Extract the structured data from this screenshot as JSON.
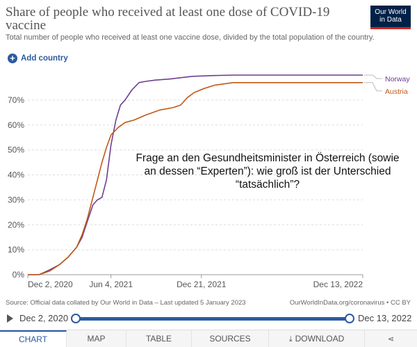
{
  "header": {
    "title": "Share of people who received at least one dose of COVID-19 vaccine",
    "subtitle": "Total number of people who received at least one vaccine dose, divided by the total population of the country.",
    "logo_line1": "Our World",
    "logo_line2": "in Data"
  },
  "controls": {
    "add_country": "Add country"
  },
  "annotation": "Frage an den Gesundheitsminister in Österreich (sowie an dessen “Experten”): wie groß ist der Unterschied “tatsächlich”?",
  "footer": {
    "source": "Source: Official data collated by Our World in Data – Last updated 5 January 2023",
    "url": "OurWorldInData.org/coronavirus • CC BY"
  },
  "timeline": {
    "start": "Dec 2, 2020",
    "end": "Dec 13, 2022"
  },
  "tabs": {
    "chart": "CHART",
    "map": "MAP",
    "table": "TABLE",
    "sources": "SOURCES",
    "download": "DOWNLOAD"
  },
  "colors": {
    "norway": "#6d3e91",
    "austria": "#c05917",
    "accent": "#2c5aa0"
  },
  "chart_data": {
    "type": "line",
    "x_ticks": [
      "Dec 2, 2020",
      "Jun 4, 2021",
      "Dec 21, 2021",
      "Dec 13, 2022"
    ],
    "y_ticks": [
      "0%",
      "10%",
      "20%",
      "30%",
      "40%",
      "50%",
      "60%",
      "70%"
    ],
    "ylim": [
      0,
      80
    ],
    "xlim": [
      "2020-12-02",
      "2022-12-13"
    ],
    "grid": true,
    "legend": "right",
    "series": [
      {
        "name": "Norway",
        "x": [
          "2020-12-02",
          "2020-12-27",
          "2021-01-20",
          "2021-02-10",
          "2021-03-01",
          "2021-03-20",
          "2021-04-01",
          "2021-04-12",
          "2021-04-25",
          "2021-05-05",
          "2021-05-15",
          "2021-05-25",
          "2021-06-04",
          "2021-06-15",
          "2021-06-25",
          "2021-07-05",
          "2021-07-20",
          "2021-08-05",
          "2021-08-20",
          "2021-09-10",
          "2021-10-15",
          "2021-12-01",
          "2022-01-15",
          "2022-03-01",
          "2022-06-01",
          "2022-09-01",
          "2022-12-13"
        ],
        "values": [
          0,
          0,
          2,
          4,
          7,
          11,
          15,
          21,
          28,
          30,
          31,
          38,
          52,
          62,
          68,
          70,
          74,
          77,
          77.5,
          78,
          78.5,
          79.5,
          79.8,
          80,
          80,
          80,
          80
        ]
      },
      {
        "name": "Austria",
        "x": [
          "2020-12-02",
          "2020-12-27",
          "2021-01-20",
          "2021-02-10",
          "2021-03-01",
          "2021-03-20",
          "2021-04-01",
          "2021-04-12",
          "2021-04-25",
          "2021-05-05",
          "2021-05-15",
          "2021-05-25",
          "2021-06-04",
          "2021-06-20",
          "2021-07-05",
          "2021-07-25",
          "2021-08-20",
          "2021-09-20",
          "2021-10-20",
          "2021-11-05",
          "2021-11-20",
          "2021-12-05",
          "2021-12-25",
          "2022-01-20",
          "2022-03-01",
          "2022-06-01",
          "2022-09-01",
          "2022-12-13"
        ],
        "values": [
          0,
          0,
          1.5,
          4,
          7,
          11,
          16,
          22,
          31,
          38,
          45,
          51,
          56,
          59,
          61,
          62,
          64,
          66,
          67,
          68,
          71,
          73,
          74.5,
          76,
          77,
          77,
          77,
          77
        ]
      }
    ]
  }
}
